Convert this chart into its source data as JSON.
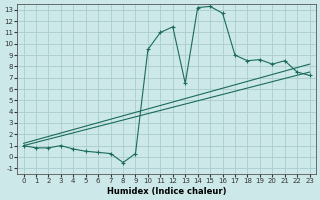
{
  "xlabel": "Humidex (Indice chaleur)",
  "bg_color": "#cce8e8",
  "grid_color": "#aacccc",
  "line_color": "#1a6b5a",
  "xlim": [
    -0.5,
    23.5
  ],
  "ylim": [
    -1.5,
    13.5
  ],
  "xticks": [
    0,
    1,
    2,
    3,
    4,
    5,
    6,
    7,
    8,
    9,
    10,
    11,
    12,
    13,
    14,
    15,
    16,
    17,
    18,
    19,
    20,
    21,
    22,
    23
  ],
  "yticks": [
    -1,
    0,
    1,
    2,
    3,
    4,
    5,
    6,
    7,
    8,
    9,
    10,
    11,
    12,
    13
  ],
  "line1_x": [
    0,
    1,
    2,
    3,
    4,
    5,
    6,
    7,
    8,
    9,
    10,
    11,
    12,
    13,
    14,
    15,
    16,
    17,
    18,
    19,
    20,
    21,
    22,
    23
  ],
  "line1_y": [
    1,
    0.8,
    0.8,
    1.0,
    0.7,
    0.5,
    0.4,
    0.3,
    -0.5,
    0.3,
    9.5,
    11.0,
    11.5,
    6.5,
    13.2,
    13.3,
    12.7,
    9.0,
    8.5,
    8.6,
    8.2,
    8.5,
    7.5,
    7.2
  ],
  "line2_x": [
    0,
    23
  ],
  "line2_y": [
    1.0,
    7.5
  ],
  "line3_x": [
    0,
    23
  ],
  "line3_y": [
    1.2,
    8.2
  ]
}
